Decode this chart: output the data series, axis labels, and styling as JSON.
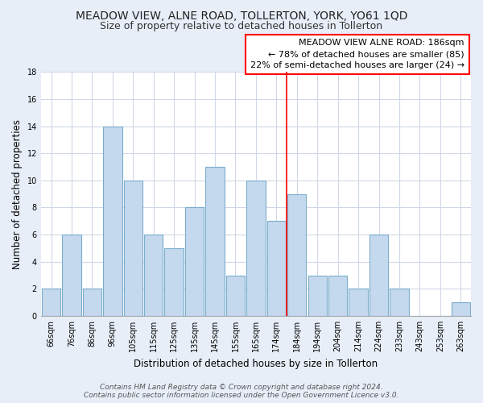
{
  "title": "MEADOW VIEW, ALNE ROAD, TOLLERTON, YORK, YO61 1QD",
  "subtitle": "Size of property relative to detached houses in Tollerton",
  "xlabel": "Distribution of detached houses by size in Tollerton",
  "ylabel": "Number of detached properties",
  "categories": [
    "66sqm",
    "76sqm",
    "86sqm",
    "96sqm",
    "105sqm",
    "115sqm",
    "125sqm",
    "135sqm",
    "145sqm",
    "155sqm",
    "165sqm",
    "174sqm",
    "184sqm",
    "194sqm",
    "204sqm",
    "214sqm",
    "224sqm",
    "233sqm",
    "243sqm",
    "253sqm",
    "263sqm"
  ],
  "values": [
    2,
    6,
    2,
    14,
    10,
    6,
    5,
    8,
    11,
    3,
    10,
    7,
    9,
    3,
    3,
    2,
    6,
    2,
    0,
    0,
    1
  ],
  "bar_color": "#c5d9ee",
  "bar_edge_color": "#7aaecb",
  "highlight_index": 12,
  "annotation_title": "MEADOW VIEW ALNE ROAD: 186sqm",
  "annotation_line1": "← 78% of detached houses are smaller (85)",
  "annotation_line2": "22% of semi-detached houses are larger (24) →",
  "footer1": "Contains HM Land Registry data © Crown copyright and database right 2024.",
  "footer2": "Contains public sector information licensed under the Open Government Licence v3.0.",
  "ylim": [
    0,
    18
  ],
  "yticks": [
    0,
    2,
    4,
    6,
    8,
    10,
    12,
    14,
    16,
    18
  ],
  "plot_bg_color": "#ffffff",
  "fig_bg_color": "#e8eef8",
  "grid_color": "#d0d8e8",
  "title_fontsize": 10,
  "subtitle_fontsize": 9,
  "axis_label_fontsize": 8.5,
  "tick_fontsize": 7,
  "annotation_fontsize": 8,
  "footer_fontsize": 6.5
}
